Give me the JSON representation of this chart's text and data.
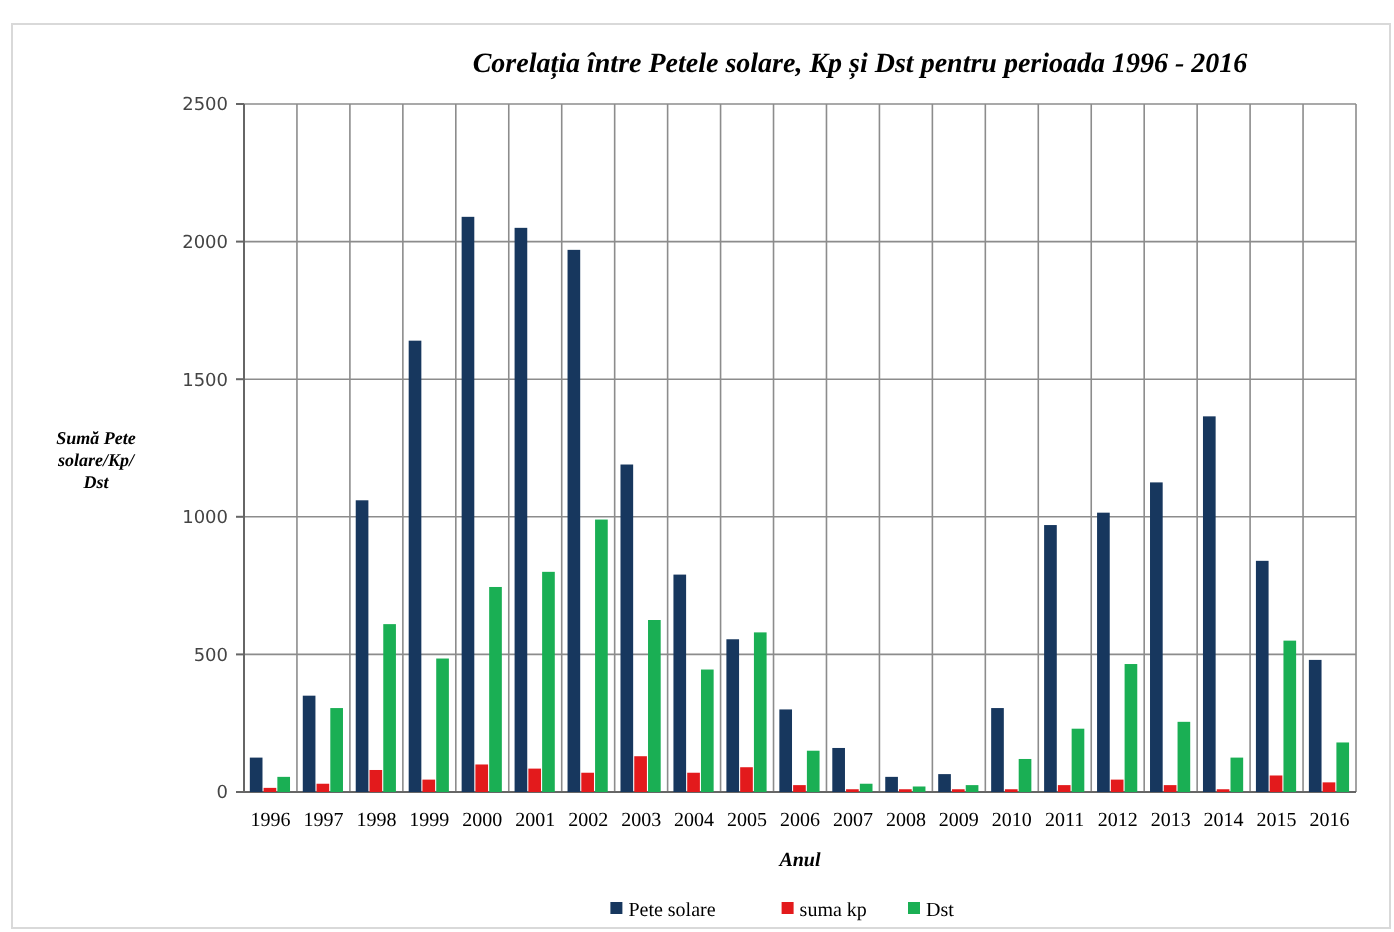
{
  "chart_data": {
    "type": "bar",
    "title": "Corelația între Petele solare, Kp și Dst pentru perioada 1996 - 2016",
    "xlabel": "Anul",
    "ylabel": "Sumă Pete solare/Kp/ Dst",
    "categories": [
      "1996",
      "1997",
      "1998",
      "1999",
      "2000",
      "2001",
      "2002",
      "2003",
      "2004",
      "2005",
      "2006",
      "2007",
      "2008",
      "2009",
      "2010",
      "2011",
      "2012",
      "2013",
      "2014",
      "2015",
      "2016"
    ],
    "series": [
      {
        "name": "Pete solare",
        "color": "#17375e",
        "values": [
          125,
          350,
          1060,
          1640,
          2090,
          2050,
          1970,
          1190,
          790,
          555,
          300,
          160,
          55,
          65,
          305,
          970,
          1015,
          1125,
          1365,
          840,
          480
        ]
      },
      {
        "name": "suma kp",
        "color": "#e31a1c",
        "values": [
          15,
          30,
          80,
          45,
          100,
          85,
          70,
          130,
          70,
          90,
          25,
          10,
          10,
          10,
          10,
          25,
          45,
          25,
          10,
          60,
          35
        ]
      },
      {
        "name": "Dst",
        "color": "#1aaf54",
        "values": [
          55,
          305,
          610,
          485,
          745,
          800,
          990,
          625,
          445,
          580,
          150,
          30,
          20,
          25,
          120,
          230,
          465,
          255,
          125,
          550,
          180
        ]
      }
    ],
    "ylim": [
      0,
      2500
    ],
    "yticks": [
      0,
      500,
      1000,
      1500,
      2000,
      2500
    ],
    "grid": true,
    "legend": "bottom"
  }
}
